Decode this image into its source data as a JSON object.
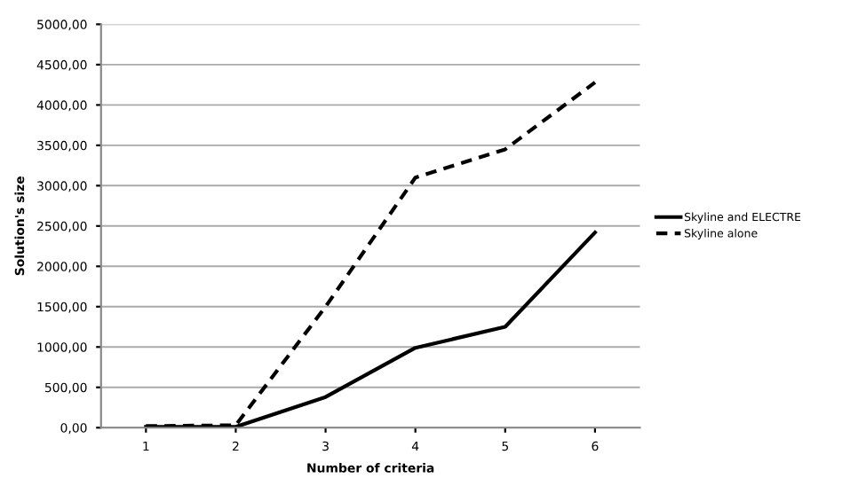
{
  "chart_data": {
    "type": "line",
    "xlabel": "Number of criteria",
    "ylabel": "Solution's size",
    "categories": [
      "1",
      "2",
      "3",
      "4",
      "5",
      "6"
    ],
    "series": [
      {
        "name": "Skyline and ELECTRE",
        "color": "#000000",
        "line_style": "solid",
        "values": [
          10,
          10,
          380,
          990,
          1250,
          2420
        ]
      },
      {
        "name": "Skyline alone",
        "color": "#000000",
        "line_style": "dashed",
        "values": [
          20,
          30,
          1500,
          3100,
          3450,
          4280
        ]
      }
    ],
    "ylim": [
      0,
      5000
    ],
    "yticks": [
      {
        "value": 0,
        "label": "0,00"
      },
      {
        "value": 500,
        "label": "500,00"
      },
      {
        "value": 1000,
        "label": "1000,00"
      },
      {
        "value": 1500,
        "label": "1500,00"
      },
      {
        "value": 2000,
        "label": "2000,00"
      },
      {
        "value": 2500,
        "label": "2500,00"
      },
      {
        "value": 3000,
        "label": "3000,00"
      },
      {
        "value": 3500,
        "label": "3500,00"
      },
      {
        "value": 4000,
        "label": "4000,00"
      },
      {
        "value": 4500,
        "label": "4500,00"
      },
      {
        "value": 5000,
        "label": "5000,00"
      }
    ],
    "grid": "y",
    "legend": "right",
    "marker": "none"
  }
}
